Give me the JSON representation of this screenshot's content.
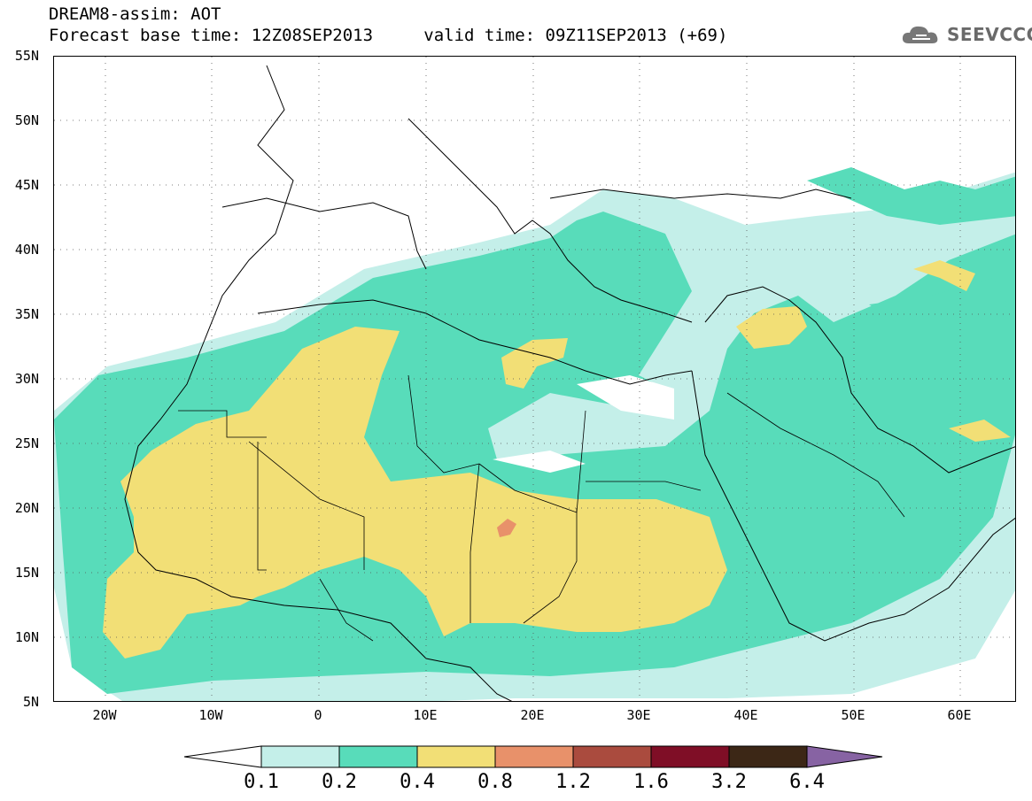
{
  "header": {
    "title": "DREAM8-assim: AOT",
    "base_time_label": "Forecast base time: 12Z08SEP2013",
    "valid_time_label": "valid time: 09Z11SEP2013 (+69)"
  },
  "logo": {
    "text": "SEEVCCC",
    "icon": "cloud-icon"
  },
  "map": {
    "variable": "AOT",
    "lat_range": [
      5,
      55
    ],
    "lon_range": [
      -25,
      65
    ],
    "gridlines": "dotted",
    "lat_ticks": [
      "55N",
      "50N",
      "45N",
      "40N",
      "35N",
      "30N",
      "25N",
      "20N",
      "15N",
      "10N",
      "5N"
    ],
    "lon_ticks": [
      "20W",
      "10W",
      "0",
      "10E",
      "20E",
      "30E",
      "40E",
      "50E",
      "60E"
    ]
  },
  "legend": {
    "labels": [
      "0.1",
      "0.2",
      "0.4",
      "0.8",
      "1.2",
      "1.6",
      "3.2",
      "6.4"
    ],
    "colors": [
      "#ffffff",
      "#c4efe9",
      "#58dcba",
      "#f2df76",
      "#e8916a",
      "#aa4b3e",
      "#7f0e26",
      "#3c2716",
      "#8763a3"
    ]
  }
}
